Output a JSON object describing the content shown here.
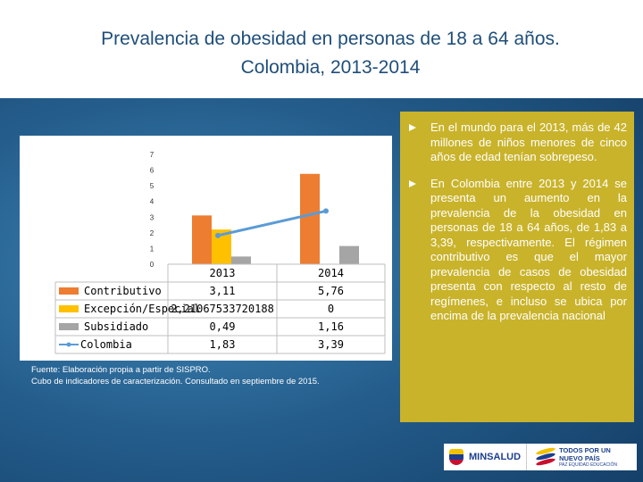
{
  "slide": {
    "title_line1": "Prevalencia de obesidad en personas de 18 a 64 años.",
    "title_line2": "Colombia, 2013-2014"
  },
  "chart_data": {
    "type": "bar",
    "categories": [
      "2013",
      "2014"
    ],
    "series": [
      {
        "name": "Contributivo",
        "values": [
          3.11,
          5.76
        ],
        "display": [
          "3,11",
          "5,76"
        ],
        "color": "#ed7d31"
      },
      {
        "name": "Excepción/Especial",
        "values": [
          2.21067533720188,
          0
        ],
        "display": [
          "2,21067533720188",
          "0"
        ],
        "color": "#ffc000"
      },
      {
        "name": "Subsidiado",
        "values": [
          0.49,
          1.16
        ],
        "display": [
          "0,49",
          "1,16"
        ],
        "color": "#a5a5a5"
      },
      {
        "name": "Colombia",
        "values": [
          1.83,
          3.39
        ],
        "display": [
          "1,83",
          "3,39"
        ],
        "color": "#5b9bd5",
        "style": "line"
      }
    ],
    "y_ticks": [
      "0",
      "1",
      "2",
      "3",
      "4",
      "5",
      "6",
      "7"
    ],
    "ylim": [
      0,
      7
    ],
    "grid": false,
    "legend": "data-table"
  },
  "source": {
    "line1": "Fuente: Elaboración propia a partir de SISPRO.",
    "line2": "Cubo de indicadores de caracterización. Consultado en septiembre de 2015."
  },
  "bullets": [
    "En el mundo para el 2013, más de 42 millones de niños menores de cinco años de edad tenían sobrepeso.",
    "En Colombia entre 2013 y 2014 se presenta un aumento en la prevalencia de la obesidad en personas de 18 a 64 años, de 1,83 a 3,39, respectivamente. El régimen contributivo es que el mayor prevalencia de casos de obesidad presenta con respecto al resto de regímenes, e incluso se ubica por encima de la prevalencia nacional"
  ],
  "logos": {
    "minsalud": "MINSALUD",
    "pais_line1": "TODOS POR UN",
    "pais_line2": "NUEVO PAÍS",
    "pais_line3": "PAZ EQUIDAD EDUCACIÓN"
  }
}
